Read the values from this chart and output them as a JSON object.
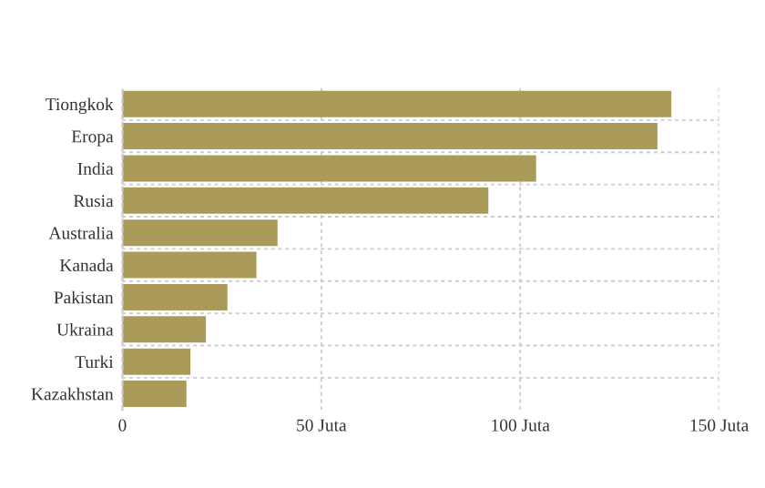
{
  "chart_data": {
    "type": "bar",
    "orientation": "horizontal",
    "categories": [
      "Tiongkok",
      "Eropa",
      "India",
      "Rusia",
      "Australia",
      "Kanada",
      "Pakistan",
      "Ukraina",
      "Turki",
      "Kazakhstan"
    ],
    "values": [
      138,
      134.5,
      104,
      92,
      39,
      33.7,
      26.4,
      21,
      17.1,
      16.1
    ],
    "color": "#aa9b5b",
    "xlim": [
      0,
      150
    ],
    "xticks": [
      0,
      {
        "value": 50,
        "label": "50 Juta"
      },
      {
        "value": 100,
        "label": "100 Juta"
      },
      {
        "value": 150,
        "label": "150 Juta"
      }
    ],
    "grid": true
  }
}
